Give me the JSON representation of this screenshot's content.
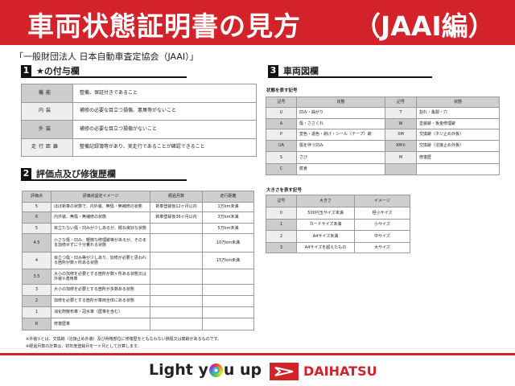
{
  "header": {
    "title": "車両状態証明書の見方",
    "title_suffix": "（JAAI編）",
    "organization": "「一般財団法人 日本自動車査定協会（JAAI）」"
  },
  "section1": {
    "number": "1",
    "title": "★の付与欄",
    "rows": [
      [
        "機能",
        "整備、保証付きであること"
      ],
      [
        "内装",
        "補修の必要な目立つ損傷、悪臭等がないこと"
      ],
      [
        "外装",
        "補修の必要な目立つ損傷がないこと"
      ],
      [
        "走行距離",
        "整備記録簿等があり、実走行であることが確認できること"
      ]
    ]
  },
  "section2": {
    "number": "2",
    "title": "評価点及び修復歴欄",
    "headers": [
      "評価点",
      "評価点設定イメージ",
      "経過月数",
      "走行距離"
    ],
    "rows": [
      [
        "5",
        "ほぼ新車の状態で、内外装、無傷・無補修の状態",
        "新車登録後12ヶ月以内",
        "1万km未満"
      ],
      [
        "6",
        "内外装、無傷・無補修の状態",
        "新車登録後36ヶ月以内",
        "3万km未満"
      ],
      [
        "5",
        "目立たない傷・凹みが少しあるが、概ね良好な状態",
        "",
        "5万km未満"
      ],
      [
        "4.5",
        "小さな傷・凹み、軽微な修理跡等があるが、そのまま加修せずに十分乗れる状態",
        "",
        "10万km未満"
      ],
      [
        "4",
        "目立つ傷・凹み等が少しあり、加修が必要と思われる箇所が数ヶ所ある状態",
        "",
        "15万km未満"
      ],
      [
        "3.5",
        "大小の加修を必要とする箇所が数ヶ所ある状態又は外装②適用車",
        "",
        ""
      ],
      [
        "3",
        "大小の加修を必要とする箇所が多数ある状態",
        "",
        ""
      ],
      [
        "2",
        "加修を必要とする箇所が車両全体にある状態",
        "",
        ""
      ],
      [
        "1",
        "消化剤散布車・冠水車（歴車を含む）",
        "",
        ""
      ],
      [
        "R",
        "修復歴車",
        "",
        ""
      ]
    ]
  },
  "section3": {
    "number": "3",
    "title": "車両図欄",
    "state_label": "状態を表す記号",
    "state_headers": [
      "記号",
      "状態",
      "記号",
      "状態"
    ],
    "state_rows": [
      [
        "U",
        "凹み・曲がり",
        "T",
        "割れ・亀裂・穴"
      ],
      [
        "A",
        "傷・ささくれ",
        "W",
        "塗装跡・板金修理跡"
      ],
      [
        "P",
        "変色・退色・剥げ・シール（テープ）跡",
        "XM",
        "交換跡（ネジ止め外板）"
      ],
      [
        "UA",
        "傷を伴う凹み",
        "XM②",
        "交換跡（溶接止め外板）"
      ],
      [
        "S",
        "さび",
        "M",
        "修復歴"
      ],
      [
        "C",
        "腐食",
        "",
        ""
      ]
    ],
    "size_label": "大きさを表す記号",
    "size_headers": [
      "記号",
      "大きさ",
      "イメージ"
    ],
    "size_rows": [
      [
        "0",
        "500円玉サイズ未満",
        "極小サイズ"
      ],
      [
        "1",
        "カードサイズ未満",
        "小サイズ"
      ],
      [
        "2",
        "A4サイズ未満",
        "中サイズ"
      ],
      [
        "3",
        "A4サイズを超えたもの",
        "大サイズ"
      ]
    ]
  },
  "notes": [
    "※外装②とは、交換跡（溶接止め外装）及び骨格部位に修復歴をともなわない損傷又は腐跡があるものです。",
    "※経過月数の計算は、初年度登録月を一ヶ月として計算します。"
  ],
  "footer": {
    "slogan_a": "Light y",
    "slogan_b": "u up",
    "brand": "DAIHATSU"
  },
  "colors": {
    "brand_red": "#d3222a"
  }
}
